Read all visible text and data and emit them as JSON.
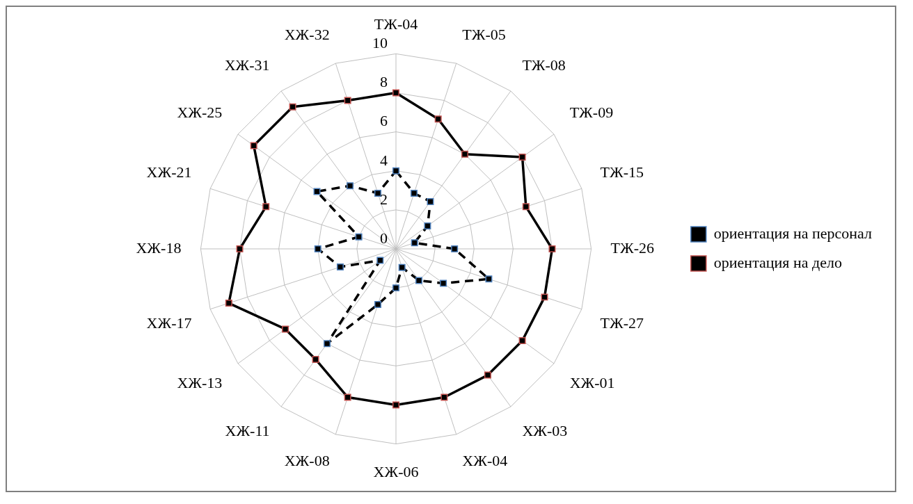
{
  "chart_data": {
    "type": "radar",
    "categories": [
      "ТЖ-04",
      "ТЖ-05",
      "ТЖ-08",
      "ТЖ-09",
      "ТЖ-15",
      "ТЖ-26",
      "ТЖ-27",
      "ХЖ-01",
      "ХЖ-03",
      "ХЖ-04",
      "ХЖ-06",
      "ХЖ-08",
      "ХЖ-11",
      "ХЖ-13",
      "ХЖ-17",
      "ХЖ-18",
      "ХЖ-21",
      "ХЖ-25",
      "ХЖ-31",
      "ХЖ-32"
    ],
    "series": [
      {
        "name": "ориентация на персонал",
        "color": "#000000",
        "line_style": "dashed",
        "values": [
          4,
          3,
          3,
          2,
          1,
          3,
          5,
          3,
          2,
          1,
          2,
          3,
          6,
          1,
          3,
          4,
          2,
          5,
          4,
          3
        ]
      },
      {
        "name": "ориентация на дело",
        "color": "#000000",
        "line_style": "solid",
        "values": [
          8,
          7,
          6,
          8,
          7,
          8,
          8,
          8,
          8,
          8,
          8,
          8,
          7,
          7,
          9,
          8,
          7,
          9,
          9,
          8
        ]
      }
    ],
    "ylim": [
      0,
      10
    ],
    "yticks": [
      0,
      2,
      4,
      6,
      8,
      10
    ],
    "grid": true,
    "legend": "right",
    "marker": "square"
  }
}
